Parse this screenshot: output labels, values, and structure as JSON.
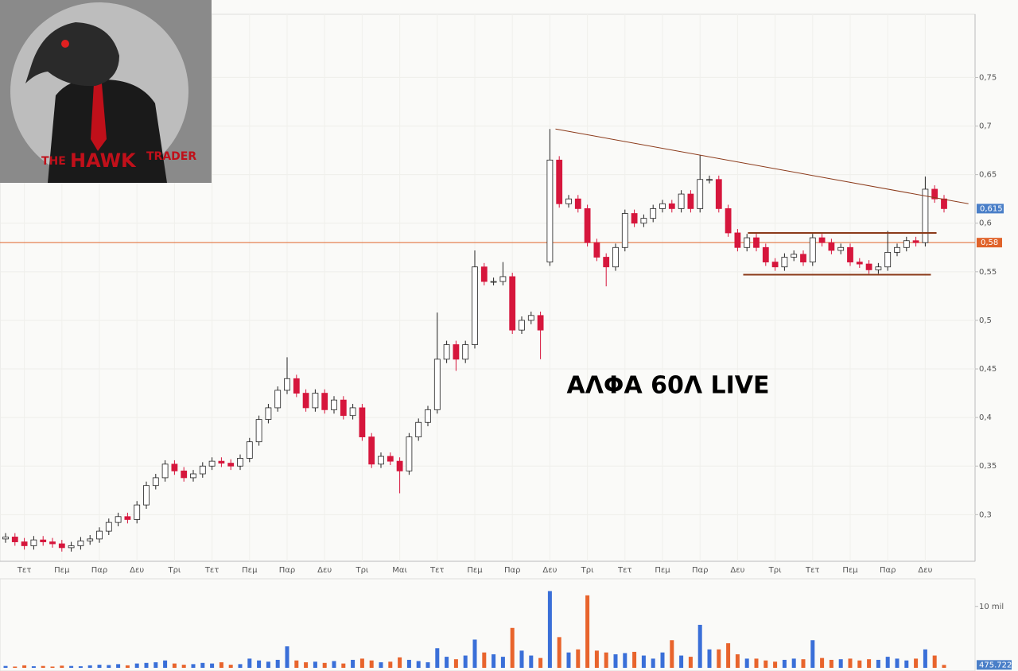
{
  "logo": {
    "small_1": "THE",
    "big": "HAWK",
    "small_2": "TRADER"
  },
  "chart_data": {
    "type": "candlestick",
    "title": "ΑΛΦΑ 60Λ LIVE",
    "categories": [
      null,
      null,
      "Τετ",
      null,
      null,
      null,
      "Πεμ",
      null,
      null,
      null,
      "Παρ",
      null,
      null,
      null,
      "Δευ",
      null,
      null,
      null,
      "Τρι",
      null,
      null,
      null,
      "Τετ",
      null,
      null,
      null,
      "Πεμ",
      null,
      null,
      null,
      "Παρ",
      null,
      null,
      null,
      "Δευ",
      null,
      null,
      null,
      "Τρι",
      null,
      null,
      null,
      "Μαι",
      null,
      null,
      null,
      "Τετ",
      null,
      null,
      null,
      "Πεμ",
      null,
      null,
      null,
      "Παρ",
      null,
      null,
      null,
      "Δευ",
      null,
      null,
      null,
      "Τρι",
      null,
      null,
      null,
      "Τετ",
      null,
      null,
      null,
      "Πεμ",
      null,
      null,
      null,
      "Παρ",
      null,
      null,
      null,
      "Δευ",
      null,
      null,
      null,
      "Τρι",
      null,
      null,
      null,
      "Τετ",
      null,
      null,
      null,
      "Πεμ",
      null,
      null,
      null,
      "Παρ",
      null,
      null,
      null,
      "Δευ",
      null,
      null
    ],
    "open": [
      0.275,
      0.277,
      0.272,
      0.268,
      0.274,
      0.272,
      0.27,
      0.266,
      0.268,
      0.273,
      0.275,
      0.283,
      0.292,
      0.298,
      0.295,
      0.31,
      0.33,
      0.338,
      0.352,
      0.345,
      0.338,
      0.342,
      0.35,
      0.355,
      0.353,
      0.35,
      0.358,
      0.375,
      0.398,
      0.41,
      0.428,
      0.44,
      0.425,
      0.41,
      0.425,
      0.408,
      0.418,
      0.402,
      0.41,
      0.38,
      0.352,
      0.36,
      0.355,
      0.345,
      0.38,
      0.395,
      0.408,
      0.46,
      0.475,
      0.46,
      0.475,
      0.555,
      0.54,
      0.54,
      0.545,
      0.49,
      0.5,
      0.505,
      0.56,
      0.665,
      0.62,
      0.625,
      0.615,
      0.58,
      0.565,
      0.555,
      0.575,
      0.61,
      0.6,
      0.605,
      0.615,
      0.62,
      0.615,
      0.63,
      0.615,
      0.645,
      0.645,
      0.615,
      0.59,
      0.575,
      0.585,
      0.575,
      0.56,
      0.555,
      0.565,
      0.568,
      0.56,
      0.585,
      0.58,
      0.572,
      0.575,
      0.56,
      0.558,
      0.552,
      0.555,
      0.57,
      0.575,
      0.582,
      0.58,
      0.635,
      0.625
    ],
    "high": [
      0.281,
      0.281,
      0.276,
      0.278,
      0.278,
      0.276,
      0.274,
      0.272,
      0.277,
      0.279,
      0.287,
      0.296,
      0.302,
      0.302,
      0.314,
      0.334,
      0.342,
      0.356,
      0.356,
      0.349,
      0.346,
      0.354,
      0.359,
      0.359,
      0.357,
      0.362,
      0.379,
      0.402,
      0.414,
      0.432,
      0.462,
      0.444,
      0.429,
      0.429,
      0.429,
      0.422,
      0.422,
      0.414,
      0.414,
      0.384,
      0.364,
      0.364,
      0.359,
      0.384,
      0.399,
      0.412,
      0.508,
      0.479,
      0.479,
      0.479,
      0.572,
      0.559,
      0.544,
      0.56,
      0.549,
      0.504,
      0.509,
      0.509,
      0.697,
      0.669,
      0.629,
      0.629,
      0.619,
      0.584,
      0.569,
      0.579,
      0.614,
      0.614,
      0.609,
      0.619,
      0.624,
      0.624,
      0.634,
      0.634,
      0.67,
      0.649,
      0.649,
      0.619,
      0.594,
      0.589,
      0.589,
      0.579,
      0.564,
      0.569,
      0.572,
      0.572,
      0.589,
      0.589,
      0.584,
      0.579,
      0.579,
      0.564,
      0.562,
      0.559,
      0.592,
      0.579,
      0.586,
      0.586,
      0.648,
      0.639,
      0.629
    ],
    "low": [
      0.271,
      0.268,
      0.264,
      0.264,
      0.268,
      0.266,
      0.262,
      0.262,
      0.264,
      0.269,
      0.271,
      0.279,
      0.288,
      0.291,
      0.291,
      0.306,
      0.326,
      0.334,
      0.341,
      0.334,
      0.334,
      0.338,
      0.346,
      0.349,
      0.346,
      0.346,
      0.354,
      0.371,
      0.394,
      0.406,
      0.424,
      0.421,
      0.406,
      0.406,
      0.404,
      0.404,
      0.398,
      0.398,
      0.376,
      0.348,
      0.348,
      0.351,
      0.322,
      0.341,
      0.376,
      0.391,
      0.404,
      0.456,
      0.448,
      0.456,
      0.471,
      0.536,
      0.536,
      0.536,
      0.486,
      0.486,
      0.496,
      0.46,
      0.556,
      0.616,
      0.616,
      0.611,
      0.576,
      0.561,
      0.535,
      0.551,
      0.571,
      0.596,
      0.596,
      0.601,
      0.611,
      0.611,
      0.611,
      0.611,
      0.611,
      0.641,
      0.611,
      0.586,
      0.571,
      0.571,
      0.571,
      0.556,
      0.551,
      0.551,
      0.561,
      0.556,
      0.556,
      0.576,
      0.568,
      0.568,
      0.556,
      0.554,
      0.548,
      0.548,
      0.551,
      0.566,
      0.571,
      0.576,
      0.576,
      0.621,
      0.611
    ],
    "close": [
      0.277,
      0.272,
      0.268,
      0.274,
      0.272,
      0.27,
      0.266,
      0.268,
      0.273,
      0.275,
      0.283,
      0.292,
      0.298,
      0.295,
      0.31,
      0.33,
      0.338,
      0.352,
      0.345,
      0.338,
      0.342,
      0.35,
      0.355,
      0.353,
      0.35,
      0.358,
      0.375,
      0.398,
      0.41,
      0.428,
      0.44,
      0.425,
      0.41,
      0.425,
      0.408,
      0.418,
      0.402,
      0.41,
      0.38,
      0.352,
      0.36,
      0.355,
      0.345,
      0.38,
      0.395,
      0.408,
      0.46,
      0.475,
      0.46,
      0.475,
      0.555,
      0.54,
      0.54,
      0.545,
      0.49,
      0.5,
      0.505,
      0.49,
      0.665,
      0.62,
      0.625,
      0.615,
      0.58,
      0.565,
      0.555,
      0.575,
      0.61,
      0.6,
      0.605,
      0.615,
      0.62,
      0.615,
      0.63,
      0.615,
      0.645,
      0.645,
      0.615,
      0.59,
      0.575,
      0.585,
      0.575,
      0.56,
      0.555,
      0.565,
      0.568,
      0.56,
      0.585,
      0.58,
      0.572,
      0.575,
      0.56,
      0.558,
      0.552,
      0.555,
      0.57,
      0.575,
      0.582,
      0.58,
      0.635,
      0.625,
      0.615
    ],
    "up_color": "#ffffff",
    "down_color": "#d6163c",
    "ylim": [
      0.252,
      0.815
    ],
    "yticks": [
      {
        "value": 0.3,
        "label": "0,3"
      },
      {
        "value": 0.35,
        "label": "0,35"
      },
      {
        "value": 0.4,
        "label": "0,4"
      },
      {
        "value": 0.45,
        "label": "0,45"
      },
      {
        "value": 0.5,
        "label": "0,5"
      },
      {
        "value": 0.55,
        "label": "0,55"
      },
      {
        "value": 0.6,
        "label": "0,6"
      },
      {
        "value": 0.65,
        "label": "0,65"
      },
      {
        "value": 0.7,
        "label": "0,7"
      },
      {
        "value": 0.75,
        "label": "0,75"
      }
    ],
    "last_price": {
      "value": 0.615,
      "label": "0,615",
      "color": "#4a7fc8"
    },
    "level": {
      "value": 0.58,
      "label": "0,58",
      "color": "#e0632a"
    },
    "trendlines": [
      {
        "x": [
          58.6,
          102.6
        ],
        "y": [
          0.697,
          0.62
        ],
        "color": "#8b3a1a"
      },
      {
        "x": [
          79.1,
          99.2
        ],
        "y": [
          0.59,
          0.59
        ],
        "color": "#8b3a1a"
      },
      {
        "x": [
          78.6,
          98.6
        ],
        "y": [
          0.547,
          0.547
        ],
        "color": "#8b3a1a"
      }
    ],
    "volume": [
      300000,
      200000,
      400000,
      250000,
      300000,
      200000,
      350000,
      300000,
      250000,
      400000,
      500000,
      450000,
      600000,
      400000,
      700000,
      800000,
      900000,
      1200000,
      700000,
      500000,
      600000,
      800000,
      700000,
      900000,
      500000,
      600000,
      1500000,
      1200000,
      1000000,
      1300000,
      3500000,
      1200000,
      900000,
      1000000,
      800000,
      1100000,
      700000,
      1300000,
      1500000,
      1200000,
      900000,
      1000000,
      1700000,
      1300000,
      1100000,
      900000,
      3200000,
      1800000,
      1400000,
      2000000,
      4600000,
      2500000,
      2200000,
      1800000,
      6500000,
      2800000,
      2000000,
      1600000,
      12500000,
      5000000,
      2500000,
      3000000,
      11800000,
      2800000,
      2500000,
      2200000,
      2400000,
      2600000,
      2000000,
      1500000,
      2500000,
      4500000,
      2000000,
      1800000,
      7000000,
      3000000,
      3000000,
      4000000,
      2200000,
      1500000,
      1500000,
      1200000,
      1000000,
      1300000,
      1500000,
      1400000,
      4500000,
      1600000,
      1300000,
      1400000,
      1500000,
      1200000,
      1400000,
      1300000,
      1800000,
      1500000,
      1200000,
      1500000,
      3000000,
      2000000,
      475722
    ],
    "volume_last_label": {
      "value": 475722,
      "label": "475.722"
    },
    "volume_up_color": "#3a6fd8",
    "volume_down_color": "#e8642c",
    "y2lim": [
      0,
      14500000
    ],
    "y2ticks": [
      {
        "value": 10000000,
        "label": "10 mil"
      }
    ]
  }
}
